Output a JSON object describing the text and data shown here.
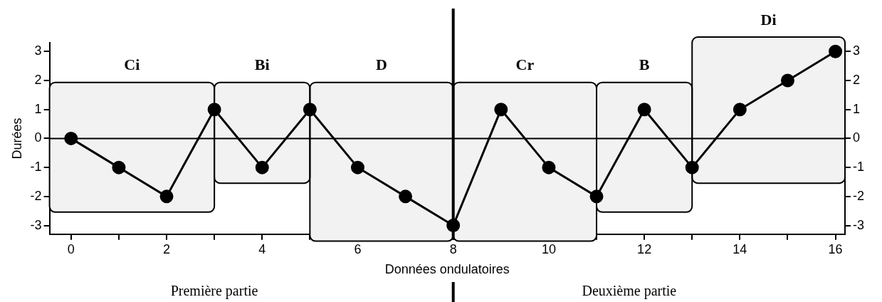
{
  "chart_data": {
    "type": "line",
    "xlabel": "Données ondulatoires",
    "ylabel": "Durées",
    "x": [
      0,
      1,
      2,
      3,
      4,
      5,
      6,
      7,
      8,
      9,
      10,
      11,
      12,
      13,
      14,
      15,
      16
    ],
    "series": [
      {
        "color": "#000000",
        "values": [
          0,
          -1,
          -2,
          1,
          -1,
          1,
          -1,
          -2,
          -3,
          1,
          -1,
          -2,
          1,
          -1,
          1,
          2,
          3
        ]
      }
    ],
    "xlim": [
      -0.45,
      16.2
    ],
    "ylim": [
      -3.3,
      3.3
    ],
    "y2lim": [
      -3.3,
      3.3
    ],
    "xticks": [
      0,
      {
        "value": 1,
        "label": null
      },
      2,
      {
        "value": 3,
        "label": null
      },
      4,
      {
        "value": 5,
        "label": null
      },
      6,
      {
        "value": 7,
        "label": null
      },
      8,
      {
        "value": 9,
        "label": null
      },
      10,
      {
        "value": 11,
        "label": null
      },
      12,
      {
        "value": 13,
        "label": null
      },
      14,
      {
        "value": 15,
        "label": null
      },
      16
    ],
    "yticks": [
      -3,
      -2,
      -1,
      0,
      1,
      2,
      3
    ],
    "y2ticks": [
      -3,
      -2,
      -1,
      0,
      1,
      2,
      3
    ],
    "ref_lines": [
      {
        "axis": "y",
        "value": 0,
        "color": "#000000"
      },
      {
        "axis": "x",
        "value": 8,
        "color": "#000000"
      }
    ],
    "bands": [
      {
        "axis": "x",
        "from": -0.45,
        "to": 3,
        "label": "Ci",
        "color": "#f2f2f2"
      },
      {
        "axis": "x",
        "from": 3,
        "to": 5,
        "label": "Bi",
        "color": "#f2f2f2"
      },
      {
        "axis": "x",
        "from": 5,
        "to": 8,
        "label": "D",
        "color": "#f2f2f2"
      },
      {
        "axis": "x",
        "from": 8,
        "to": 11,
        "label": "Cr",
        "color": "#f2f2f2"
      },
      {
        "axis": "x",
        "from": 11,
        "to": 13,
        "label": "B",
        "color": "#f2f2f2"
      },
      {
        "axis": "x",
        "from": 13,
        "to": 16.2,
        "label": "Di",
        "color": "#f2f2f2"
      }
    ],
    "annotations": [
      "Première partie",
      "Deuxième partie"
    ],
    "grid": false,
    "legend": false,
    "marker": "circle",
    "line_style": "solid"
  }
}
